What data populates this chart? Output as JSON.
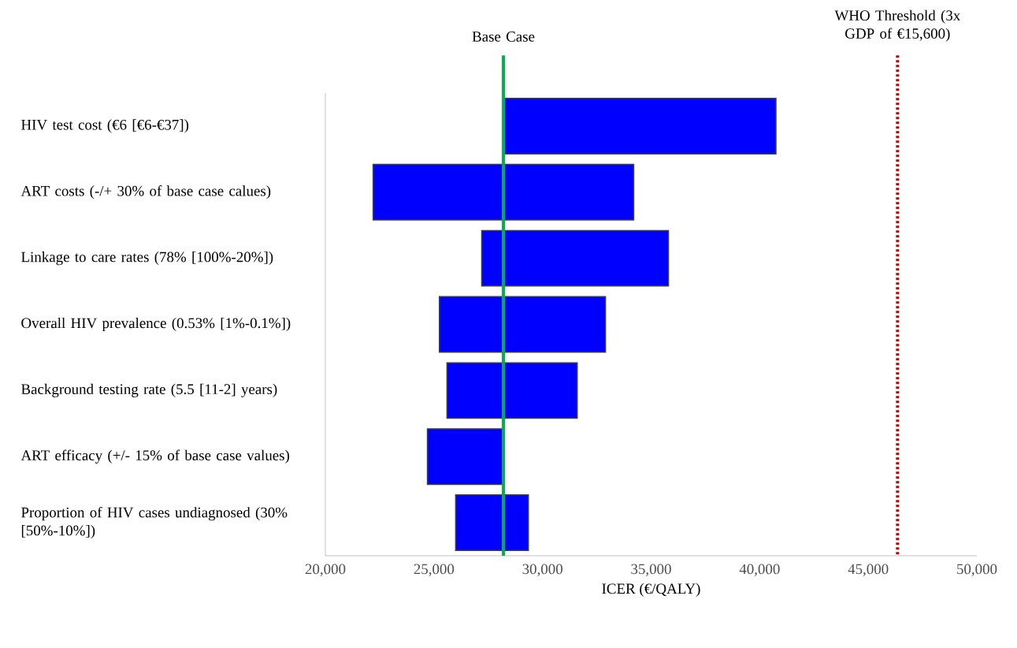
{
  "chart_data": {
    "type": "bar",
    "orientation": "horizontal",
    "categories": [
      "HIV test cost (€6 [€6-€37])",
      "ART costs (-/+ 30% of base case calues)",
      "Linkage to care rates (78% [100%-20%])",
      "Overall HIV prevalence (0.53% [1%-0.1%])",
      "Background testing rate (5.5 [11-2] years)",
      "ART efficacy (+/- 15% of base case values)",
      "Proportion of HIV cases undiagnosed (30% [50%-10%])"
    ],
    "base": [
      28200,
      22200,
      27200,
      25250,
      25600,
      24700,
      26000
    ],
    "values": [
      12550,
      12000,
      8600,
      7650,
      6000,
      3450,
      3350
    ],
    "color": "#0000ff",
    "xlim": [
      20000,
      50000
    ],
    "xticks": [
      {
        "value": 20000,
        "label": "20,000"
      },
      {
        "value": 25000,
        "label": "25,000"
      },
      {
        "value": 30000,
        "label": "30,000"
      },
      {
        "value": 35000,
        "label": "35,000"
      },
      {
        "value": 40000,
        "label": "40,000"
      },
      {
        "value": 45000,
        "label": "45,000"
      },
      {
        "value": 50000,
        "label": "50,000"
      }
    ],
    "xlabel": "ICER (€/QALY)",
    "ref_lines": [
      {
        "axis": "x",
        "value": 28200,
        "label": "Base Case",
        "color": "#00b050",
        "line_style": "solid"
      },
      {
        "axis": "x",
        "value": 46350,
        "label": "WHO Threshold (3x GDP of €15,600)",
        "color": "#c00000",
        "line_style": "dotted"
      }
    ],
    "grid": false
  }
}
